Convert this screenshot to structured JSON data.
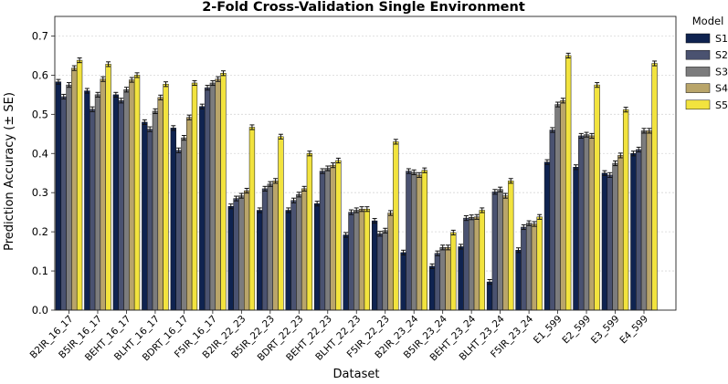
{
  "chart_data": {
    "type": "bar",
    "title": "2-Fold Cross-Validation Single Environment",
    "xlabel": "Dataset",
    "ylabel": "Prediction Accuracy (± SE)",
    "ylim": [
      0,
      0.75
    ],
    "yticks": [
      "0.0",
      "0.1",
      "0.2",
      "0.3",
      "0.4",
      "0.5",
      "0.6",
      "0.7"
    ],
    "grid": true,
    "legend_title": "Model",
    "legend_position": "right-outside",
    "categories": [
      "B2IR_16_17",
      "B5IR_16_17",
      "BEHT_16_17",
      "BLHT_16_17",
      "BDRT_16_17",
      "F5IR_16_17",
      "B2IR_22_23",
      "B5IR_22_23",
      "BDRT_22_23",
      "BEHT_22_23",
      "BLHT_22_23",
      "F5IR_22_23",
      "B2IR_23_24",
      "B5IR_23_24",
      "BEHT_23_24",
      "BLHT_23_24",
      "F5IR_23_24",
      "E1_599",
      "E2_599",
      "E3_599",
      "E4_599"
    ],
    "series": [
      {
        "name": "S1",
        "color": "#0f2350",
        "values": [
          0.583,
          0.56,
          0.55,
          0.48,
          0.465,
          0.52,
          0.265,
          0.255,
          0.255,
          0.272,
          0.192,
          0.228,
          0.147,
          0.112,
          0.162,
          0.072,
          0.153,
          0.378,
          0.365,
          0.35,
          0.4
        ]
      },
      {
        "name": "S2",
        "color": "#4a5270",
        "values": [
          0.545,
          0.513,
          0.535,
          0.462,
          0.408,
          0.568,
          0.285,
          0.31,
          0.28,
          0.355,
          0.25,
          0.195,
          0.355,
          0.145,
          0.235,
          0.302,
          0.212,
          0.46,
          0.445,
          0.345,
          0.41
        ]
      },
      {
        "name": "S3",
        "color": "#7c7c7d",
        "values": [
          0.575,
          0.55,
          0.563,
          0.508,
          0.44,
          0.58,
          0.292,
          0.322,
          0.295,
          0.362,
          0.255,
          0.203,
          0.352,
          0.16,
          0.237,
          0.308,
          0.222,
          0.525,
          0.448,
          0.375,
          0.458
        ]
      },
      {
        "name": "S4",
        "color": "#b9a56a",
        "values": [
          0.618,
          0.59,
          0.588,
          0.543,
          0.492,
          0.59,
          0.305,
          0.33,
          0.31,
          0.37,
          0.258,
          0.248,
          0.345,
          0.16,
          0.238,
          0.292,
          0.22,
          0.535,
          0.445,
          0.395,
          0.458
        ]
      },
      {
        "name": "S5",
        "color": "#f2e33e",
        "values": [
          0.638,
          0.628,
          0.6,
          0.577,
          0.58,
          0.605,
          0.467,
          0.443,
          0.4,
          0.382,
          0.258,
          0.43,
          0.357,
          0.198,
          0.255,
          0.33,
          0.238,
          0.65,
          0.575,
          0.512,
          0.63
        ]
      }
    ]
  }
}
